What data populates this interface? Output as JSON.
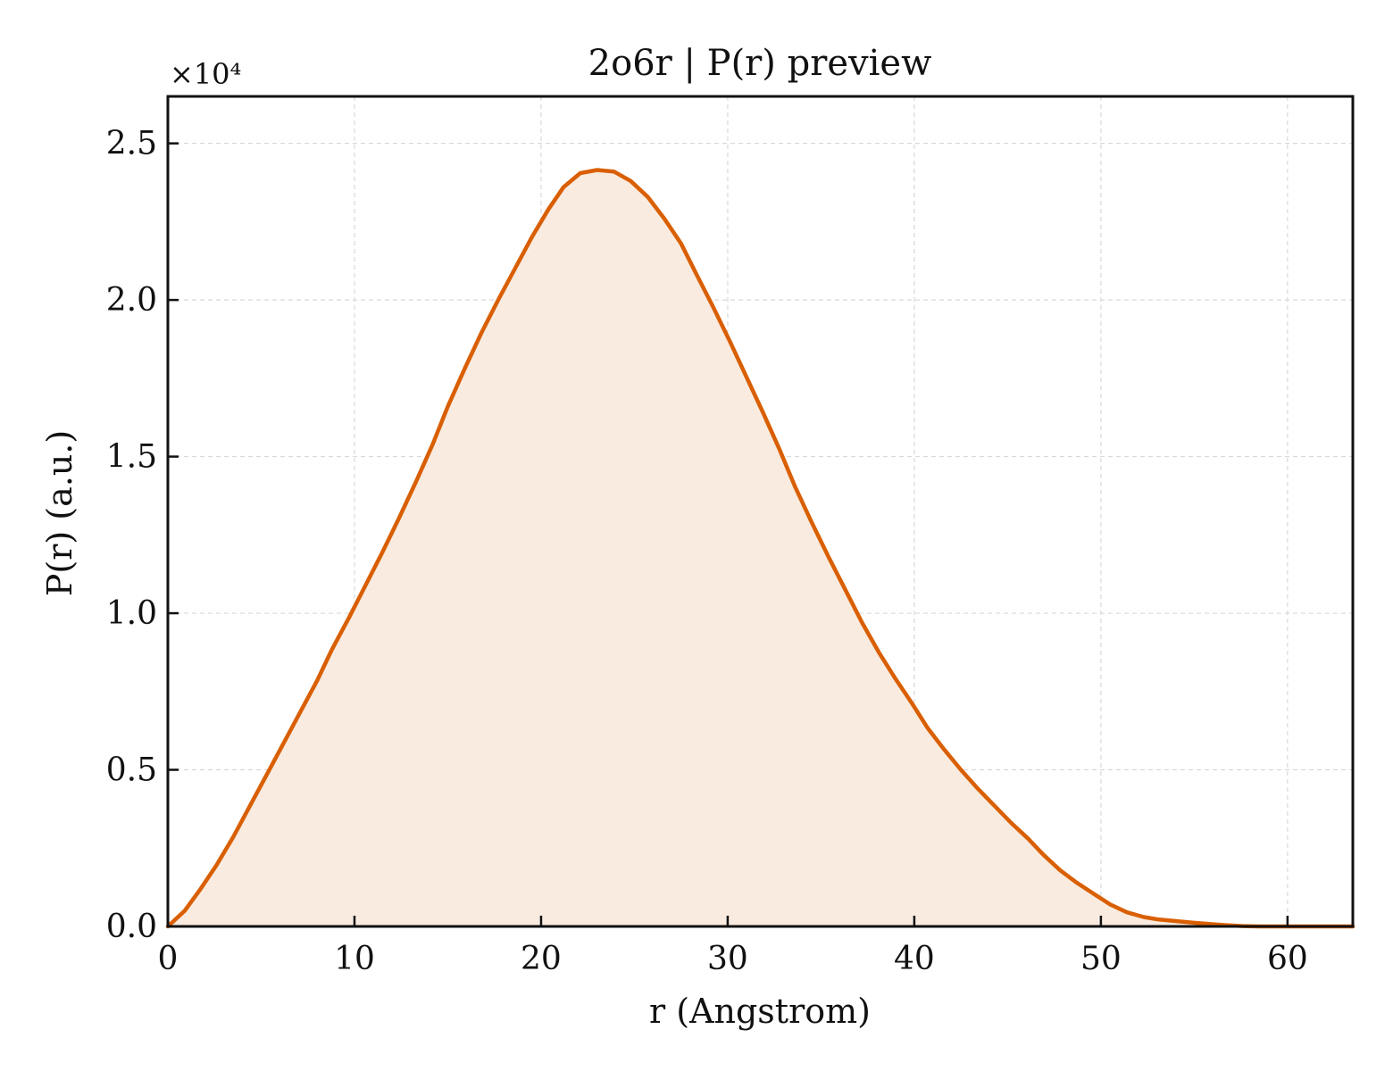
{
  "chart_data": {
    "type": "area",
    "title": "2o6r | P(r) preview",
    "xlabel": "r (Angstrom)",
    "ylabel": "P(r) (a.u.)",
    "y_offset_label": "×10⁴",
    "y_scale_factor": 10000,
    "xlim": [
      0,
      63.5
    ],
    "ylim": [
      0,
      26500
    ],
    "grid": true,
    "x_ticks": [
      0,
      10,
      20,
      30,
      40,
      50,
      60
    ],
    "x_tick_labels": [
      "0",
      "10",
      "20",
      "30",
      "40",
      "50",
      "60"
    ],
    "y_ticks": [
      0,
      5000,
      10000,
      15000,
      20000,
      25000
    ],
    "y_tick_labels": [
      "0.0",
      "0.5",
      "1.0",
      "1.5",
      "2.0",
      "2.5"
    ],
    "series": [
      {
        "color": "#d95f02",
        "fill_color": "#f9ebe0",
        "x": [
          0,
          0.9,
          1.7,
          2.6,
          3.5,
          4.4,
          5.3,
          6.2,
          7.1,
          8.0,
          8.8,
          9.7,
          10.6,
          11.5,
          12.4,
          13.3,
          14.2,
          15.0,
          15.9,
          16.8,
          17.7,
          18.6,
          19.5,
          20.4,
          21.2,
          22.1,
          23.0,
          23.9,
          24.8,
          25.7,
          26.6,
          27.5,
          28.3,
          29.2,
          30.1,
          31.0,
          31.9,
          32.8,
          33.6,
          34.5,
          35.4,
          36.3,
          37.2,
          38.1,
          39.0,
          39.9,
          40.7,
          41.6,
          42.5,
          43.4,
          44.3,
          45.2,
          46.1,
          46.9,
          47.8,
          48.7,
          49.6,
          50.5,
          51.4,
          52.3,
          53.1,
          54.0,
          54.9,
          55.8,
          56.7,
          57.6,
          58.5,
          59.3,
          60.2,
          61.1,
          62.0,
          62.9,
          63.5
        ],
        "y": [
          0,
          500,
          1150,
          1950,
          2850,
          3850,
          4850,
          5850,
          6850,
          7850,
          8850,
          9850,
          10900,
          11950,
          13050,
          14200,
          15400,
          16600,
          17800,
          18950,
          20000,
          21000,
          22000,
          22900,
          23600,
          24050,
          24150,
          24100,
          23800,
          23300,
          22600,
          21800,
          20850,
          19800,
          18700,
          17550,
          16400,
          15200,
          14050,
          12900,
          11800,
          10750,
          9700,
          8750,
          7900,
          7100,
          6350,
          5650,
          5000,
          4400,
          3850,
          3300,
          2800,
          2300,
          1800,
          1400,
          1050,
          700,
          450,
          300,
          220,
          170,
          120,
          80,
          40,
          10,
          0,
          0,
          0,
          0,
          0,
          0,
          0
        ]
      }
    ]
  }
}
